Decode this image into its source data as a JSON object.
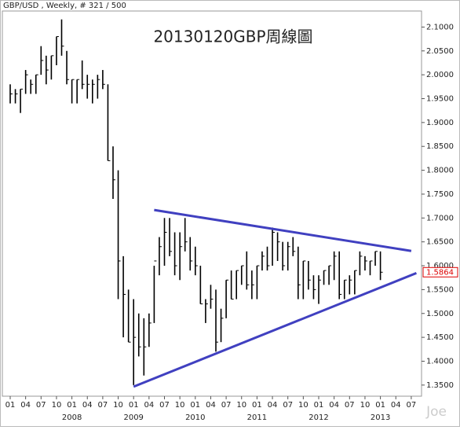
{
  "chart_data": {
    "type": "ohlc",
    "title": "20130120GBP周線圖",
    "header": "GBP/USD , Weekly, # 321 / 500",
    "watermark": "Joe",
    "color": "#000000",
    "x": [
      "2007-01",
      "2007-02",
      "2007-03",
      "2007-04",
      "2007-05",
      "2007-06",
      "2007-07",
      "2007-08",
      "2007-09",
      "2007-10",
      "2007-11",
      "2007-12",
      "2008-01",
      "2008-02",
      "2008-03",
      "2008-04",
      "2008-05",
      "2008-06",
      "2008-07",
      "2008-08",
      "2008-09",
      "2008-10",
      "2008-11",
      "2008-12",
      "2009-01",
      "2009-02",
      "2009-03",
      "2009-04",
      "2009-05",
      "2009-06",
      "2009-07",
      "2009-08",
      "2009-09",
      "2009-10",
      "2009-11",
      "2009-12",
      "2010-01",
      "2010-02",
      "2010-03",
      "2010-04",
      "2010-05",
      "2010-06",
      "2010-07",
      "2010-08",
      "2010-09",
      "2010-10",
      "2010-11",
      "2010-12",
      "2011-01",
      "2011-02",
      "2011-03",
      "2011-04",
      "2011-05",
      "2011-06",
      "2011-07",
      "2011-08",
      "2011-09",
      "2011-10",
      "2011-11",
      "2011-12",
      "2012-01",
      "2012-02",
      "2012-03",
      "2012-04",
      "2012-05",
      "2012-06",
      "2012-07",
      "2012-08",
      "2012-09",
      "2012-10",
      "2012-11",
      "2012-12",
      "2013-01"
    ],
    "high": [
      1.98,
      1.97,
      1.97,
      2.01,
      1.99,
      2.0,
      2.06,
      2.04,
      2.04,
      2.08,
      2.116,
      2.05,
      1.99,
      1.99,
      2.03,
      2.0,
      1.99,
      2.0,
      2.01,
      1.98,
      1.85,
      1.8,
      1.62,
      1.55,
      1.53,
      1.5,
      1.49,
      1.5,
      1.6,
      1.66,
      1.7,
      1.7,
      1.67,
      1.67,
      1.7,
      1.66,
      1.64,
      1.6,
      1.53,
      1.56,
      1.55,
      1.51,
      1.57,
      1.59,
      1.59,
      1.6,
      1.63,
      1.59,
      1.6,
      1.63,
      1.64,
      1.68,
      1.67,
      1.65,
      1.65,
      1.66,
      1.64,
      1.61,
      1.61,
      1.58,
      1.58,
      1.59,
      1.6,
      1.63,
      1.63,
      1.57,
      1.58,
      1.59,
      1.63,
      1.62,
      1.61,
      1.63,
      1.63
    ],
    "low": [
      1.94,
      1.94,
      1.92,
      1.96,
      1.96,
      1.96,
      2.0,
      1.98,
      1.99,
      2.02,
      2.04,
      1.98,
      1.94,
      1.94,
      1.97,
      1.95,
      1.94,
      1.95,
      1.97,
      1.82,
      1.74,
      1.53,
      1.45,
      1.44,
      1.35,
      1.41,
      1.37,
      1.43,
      1.48,
      1.58,
      1.6,
      1.62,
      1.58,
      1.57,
      1.63,
      1.59,
      1.58,
      1.52,
      1.48,
      1.51,
      1.42,
      1.44,
      1.49,
      1.53,
      1.53,
      1.56,
      1.55,
      1.53,
      1.53,
      1.59,
      1.59,
      1.6,
      1.61,
      1.59,
      1.59,
      1.62,
      1.53,
      1.53,
      1.55,
      1.53,
      1.52,
      1.56,
      1.56,
      1.57,
      1.53,
      1.53,
      1.54,
      1.54,
      1.58,
      1.59,
      1.58,
      1.6,
      1.57
    ],
    "close": [
      1.96,
      1.96,
      1.97,
      2.0,
      1.98,
      2.0,
      2.03,
      2.01,
      2.04,
      2.08,
      2.06,
      1.99,
      1.99,
      1.99,
      1.98,
      1.98,
      1.98,
      1.99,
      1.98,
      1.82,
      1.78,
      1.61,
      1.54,
      1.44,
      1.45,
      1.43,
      1.43,
      1.48,
      1.61,
      1.64,
      1.67,
      1.63,
      1.6,
      1.64,
      1.65,
      1.61,
      1.6,
      1.52,
      1.52,
      1.53,
      1.44,
      1.49,
      1.57,
      1.53,
      1.59,
      1.6,
      1.56,
      1.56,
      1.6,
      1.62,
      1.6,
      1.67,
      1.65,
      1.6,
      1.64,
      1.63,
      1.56,
      1.61,
      1.57,
      1.55,
      1.57,
      1.59,
      1.6,
      1.62,
      1.54,
      1.57,
      1.57,
      1.59,
      1.62,
      1.61,
      1.61,
      1.63,
      1.5864
    ],
    "ylim": [
      1.3267,
      2.1336
    ],
    "yticks": [
      {
        "value": 1.35,
        "label": "1.3500"
      },
      {
        "value": 1.4,
        "label": "1.4000"
      },
      {
        "value": 1.45,
        "label": "1.4500"
      },
      {
        "value": 1.5,
        "label": "1.5000"
      },
      {
        "value": 1.55,
        "label": "1.5500"
      },
      {
        "value": 1.6,
        "label": "1.6000"
      },
      {
        "value": 1.65,
        "label": "1.6500"
      },
      {
        "value": 1.7,
        "label": "1.7000"
      },
      {
        "value": 1.75,
        "label": "1.7500"
      },
      {
        "value": 1.8,
        "label": "1.8000"
      },
      {
        "value": 1.85,
        "label": "1.8500"
      },
      {
        "value": 1.9,
        "label": "1.9000"
      },
      {
        "value": 1.95,
        "label": "1.9500"
      },
      {
        "value": 2.0,
        "label": "2.0000"
      },
      {
        "value": 2.05,
        "label": "2.0500"
      },
      {
        "value": 2.1,
        "label": "2.1000"
      }
    ],
    "xticks": [
      {
        "value": "2007-01",
        "label": "01"
      },
      {
        "value": "2007-04",
        "label": "04"
      },
      {
        "value": "2007-07",
        "label": "07"
      },
      {
        "value": "2007-10",
        "label": "10"
      },
      {
        "value": "2008-01",
        "label": "01"
      },
      {
        "value": "2008-04",
        "label": "04"
      },
      {
        "value": "2008-07",
        "label": "07"
      },
      {
        "value": "2008-10",
        "label": "10"
      },
      {
        "value": "2009-01",
        "label": "01"
      },
      {
        "value": "2009-04",
        "label": "04"
      },
      {
        "value": "2009-07",
        "label": "07"
      },
      {
        "value": "2009-10",
        "label": "10"
      },
      {
        "value": "2010-01",
        "label": "01"
      },
      {
        "value": "2010-04",
        "label": "04"
      },
      {
        "value": "2010-07",
        "label": "07"
      },
      {
        "value": "2010-10",
        "label": "10"
      },
      {
        "value": "2011-01",
        "label": "01"
      },
      {
        "value": "2011-04",
        "label": "04"
      },
      {
        "value": "2011-07",
        "label": "07"
      },
      {
        "value": "2011-10",
        "label": "10"
      },
      {
        "value": "2012-01",
        "label": "01"
      },
      {
        "value": "2012-04",
        "label": "04"
      },
      {
        "value": "2012-07",
        "label": "07"
      },
      {
        "value": "2012-10",
        "label": "10"
      },
      {
        "value": "2013-01",
        "label": "01"
      },
      {
        "value": "2013-04",
        "label": "04"
      },
      {
        "value": "2013-07",
        "label": "07"
      }
    ],
    "year_labels": [
      {
        "value": "2008-01",
        "label": "2008"
      },
      {
        "value": "2009-01",
        "label": "2009"
      },
      {
        "value": "2010-01",
        "label": "2010"
      },
      {
        "value": "2011-01",
        "label": "2011"
      },
      {
        "value": "2012-01",
        "label": "2012"
      },
      {
        "value": "2013-01",
        "label": "2013"
      }
    ],
    "trendlines": [
      {
        "color": "#4040c0",
        "x": [
          "2009-05",
          "2013-07"
        ],
        "y": [
          1.7167,
          1.631
        ]
      },
      {
        "color": "#4040c0",
        "x": [
          "2009-01",
          "2013-08"
        ],
        "y": [
          1.3467,
          1.5846
        ]
      }
    ]
  }
}
